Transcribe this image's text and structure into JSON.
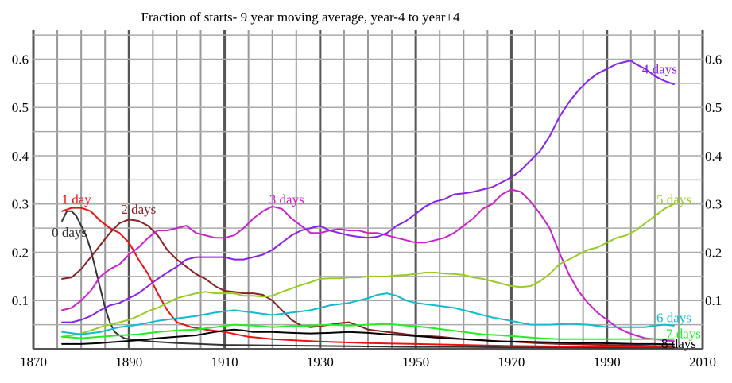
{
  "chart_data": {
    "type": "line",
    "title": "Fraction of starts- 9 year moving average, year-4 to year+4",
    "xlabel": "",
    "ylabel": "",
    "xlim": [
      1870,
      2010
    ],
    "ylim": [
      0,
      0.66
    ],
    "x_ticks": [
      "1870",
      "1890",
      "1910",
      "1930",
      "1950",
      "1970",
      "1990",
      "2010"
    ],
    "y_ticks": [
      "0.1",
      "0.2",
      "0.3",
      "0.4",
      "0.5",
      "0.6"
    ],
    "grid": true,
    "legend": "none (series labeled inline)",
    "series": [
      {
        "name": "0 days",
        "color": "#333333",
        "x": [
          1876,
          1877,
          1878,
          1879,
          1880,
          1881,
          1882,
          1883,
          1884,
          1885,
          1886,
          1887,
          1888,
          1889,
          1890,
          1892,
          1895,
          1900,
          1905,
          1910,
          1920,
          1930,
          1940,
          1950,
          1960,
          1970,
          1980,
          1990,
          2000,
          2004
        ],
        "y": [
          0.265,
          0.285,
          0.285,
          0.275,
          0.255,
          0.235,
          0.205,
          0.165,
          0.125,
          0.085,
          0.055,
          0.035,
          0.028,
          0.022,
          0.02,
          0.018,
          0.015,
          0.012,
          0.01,
          0.008,
          0.007,
          0.006,
          0.005,
          0.004,
          0.004,
          0.003,
          0.003,
          0.002,
          0.002,
          0.002
        ]
      },
      {
        "name": "1 day",
        "color": "#ee1111",
        "x": [
          1876,
          1878,
          1880,
          1882,
          1884,
          1886,
          1888,
          1890,
          1892,
          1894,
          1896,
          1898,
          1900,
          1903,
          1906,
          1910,
          1915,
          1920,
          1930,
          1940,
          1950,
          1960,
          1970,
          1980,
          1990,
          2000,
          2004
        ],
        "y": [
          0.285,
          0.292,
          0.292,
          0.285,
          0.265,
          0.25,
          0.24,
          0.22,
          0.185,
          0.155,
          0.115,
          0.08,
          0.055,
          0.045,
          0.04,
          0.035,
          0.025,
          0.02,
          0.015,
          0.012,
          0.01,
          0.008,
          0.006,
          0.005,
          0.005,
          0.004,
          0.004
        ]
      },
      {
        "name": "2 days",
        "color": "#882222",
        "x": [
          1876,
          1878,
          1880,
          1882,
          1884,
          1886,
          1888,
          1890,
          1892,
          1894,
          1896,
          1898,
          1900,
          1902,
          1904,
          1906,
          1908,
          1910,
          1912,
          1914,
          1916,
          1918,
          1920,
          1922,
          1924,
          1926,
          1928,
          1930,
          1932,
          1934,
          1936,
          1938,
          1940,
          1944,
          1950,
          1955,
          1960,
          1965,
          1970,
          1975,
          1980,
          1990,
          2000,
          2004
        ],
        "y": [
          0.145,
          0.148,
          0.165,
          0.19,
          0.215,
          0.24,
          0.26,
          0.268,
          0.265,
          0.255,
          0.235,
          0.205,
          0.185,
          0.17,
          0.155,
          0.145,
          0.13,
          0.12,
          0.118,
          0.115,
          0.115,
          0.112,
          0.1,
          0.08,
          0.06,
          0.048,
          0.045,
          0.047,
          0.05,
          0.053,
          0.055,
          0.048,
          0.04,
          0.035,
          0.028,
          0.025,
          0.02,
          0.017,
          0.015,
          0.012,
          0.01,
          0.008,
          0.006,
          0.005
        ]
      },
      {
        "name": "3 days",
        "color": "#cc22cc",
        "x": [
          1876,
          1878,
          1880,
          1882,
          1884,
          1886,
          1888,
          1890,
          1892,
          1894,
          1896,
          1898,
          1900,
          1902,
          1904,
          1906,
          1908,
          1910,
          1912,
          1914,
          1916,
          1918,
          1920,
          1922,
          1924,
          1926,
          1928,
          1930,
          1932,
          1934,
          1936,
          1938,
          1940,
          1942,
          1944,
          1946,
          1948,
          1950,
          1952,
          1954,
          1956,
          1958,
          1960,
          1962,
          1964,
          1966,
          1968,
          1970,
          1972,
          1974,
          1976,
          1978,
          1980,
          1982,
          1984,
          1986,
          1988,
          1990,
          1992,
          1994,
          1996,
          1998,
          2000,
          2002,
          2004
        ],
        "y": [
          0.08,
          0.085,
          0.1,
          0.12,
          0.15,
          0.165,
          0.175,
          0.195,
          0.21,
          0.23,
          0.245,
          0.245,
          0.25,
          0.255,
          0.24,
          0.235,
          0.23,
          0.23,
          0.235,
          0.25,
          0.27,
          0.285,
          0.295,
          0.29,
          0.27,
          0.255,
          0.24,
          0.24,
          0.245,
          0.248,
          0.245,
          0.245,
          0.24,
          0.24,
          0.235,
          0.23,
          0.225,
          0.22,
          0.22,
          0.225,
          0.23,
          0.24,
          0.255,
          0.27,
          0.29,
          0.3,
          0.32,
          0.33,
          0.325,
          0.305,
          0.28,
          0.25,
          0.2,
          0.155,
          0.12,
          0.095,
          0.075,
          0.06,
          0.045,
          0.035,
          0.028,
          0.022,
          0.02,
          0.018,
          0.016
        ]
      },
      {
        "name": "4 days",
        "color": "#8822ee",
        "x": [
          1876,
          1878,
          1880,
          1882,
          1884,
          1886,
          1888,
          1890,
          1892,
          1894,
          1896,
          1898,
          1900,
          1902,
          1904,
          1906,
          1908,
          1910,
          1912,
          1914,
          1916,
          1918,
          1920,
          1922,
          1924,
          1926,
          1928,
          1930,
          1932,
          1934,
          1936,
          1938,
          1940,
          1942,
          1944,
          1946,
          1948,
          1950,
          1952,
          1954,
          1956,
          1958,
          1960,
          1962,
          1964,
          1966,
          1968,
          1970,
          1972,
          1974,
          1976,
          1978,
          1980,
          1982,
          1984,
          1986,
          1988,
          1990,
          1992,
          1994,
          1995,
          1996,
          1998,
          2000,
          2002,
          2004
        ],
        "y": [
          0.055,
          0.055,
          0.06,
          0.068,
          0.08,
          0.09,
          0.095,
          0.105,
          0.115,
          0.13,
          0.145,
          0.158,
          0.17,
          0.185,
          0.19,
          0.19,
          0.19,
          0.19,
          0.185,
          0.185,
          0.19,
          0.195,
          0.205,
          0.22,
          0.235,
          0.245,
          0.25,
          0.255,
          0.245,
          0.24,
          0.235,
          0.232,
          0.23,
          0.232,
          0.24,
          0.255,
          0.265,
          0.28,
          0.295,
          0.305,
          0.31,
          0.32,
          0.322,
          0.325,
          0.33,
          0.335,
          0.345,
          0.355,
          0.37,
          0.39,
          0.41,
          0.44,
          0.48,
          0.51,
          0.535,
          0.555,
          0.57,
          0.58,
          0.59,
          0.595,
          0.597,
          0.59,
          0.58,
          0.565,
          0.555,
          0.548
        ]
      },
      {
        "name": "5 days",
        "color": "#99cc22",
        "x": [
          1876,
          1878,
          1880,
          1882,
          1884,
          1886,
          1888,
          1890,
          1892,
          1894,
          1896,
          1898,
          1900,
          1902,
          1904,
          1906,
          1908,
          1910,
          1912,
          1914,
          1916,
          1918,
          1920,
          1922,
          1924,
          1926,
          1928,
          1930,
          1932,
          1934,
          1936,
          1938,
          1940,
          1942,
          1944,
          1946,
          1948,
          1950,
          1952,
          1954,
          1956,
          1958,
          1960,
          1962,
          1964,
          1966,
          1968,
          1970,
          1972,
          1974,
          1976,
          1978,
          1980,
          1982,
          1984,
          1986,
          1988,
          1990,
          1992,
          1994,
          1996,
          1998,
          2000,
          2002,
          2004
        ],
        "y": [
          0.025,
          0.028,
          0.032,
          0.038,
          0.045,
          0.05,
          0.055,
          0.06,
          0.068,
          0.078,
          0.085,
          0.095,
          0.105,
          0.11,
          0.115,
          0.118,
          0.115,
          0.115,
          0.115,
          0.11,
          0.11,
          0.108,
          0.11,
          0.118,
          0.125,
          0.132,
          0.138,
          0.145,
          0.146,
          0.146,
          0.148,
          0.148,
          0.15,
          0.15,
          0.15,
          0.152,
          0.153,
          0.155,
          0.158,
          0.158,
          0.156,
          0.155,
          0.153,
          0.148,
          0.145,
          0.14,
          0.135,
          0.13,
          0.128,
          0.13,
          0.14,
          0.155,
          0.175,
          0.185,
          0.195,
          0.205,
          0.21,
          0.22,
          0.23,
          0.235,
          0.245,
          0.26,
          0.275,
          0.29,
          0.3
        ]
      },
      {
        "name": "6 days",
        "color": "#11bbcc",
        "x": [
          1876,
          1880,
          1884,
          1888,
          1892,
          1896,
          1900,
          1904,
          1908,
          1912,
          1916,
          1920,
          1924,
          1928,
          1932,
          1936,
          1940,
          1942,
          1944,
          1946,
          1948,
          1950,
          1954,
          1958,
          1962,
          1966,
          1970,
          1974,
          1978,
          1982,
          1986,
          1990,
          1994,
          1998,
          2000,
          2002,
          2004
        ],
        "y": [
          0.035,
          0.03,
          0.035,
          0.045,
          0.05,
          0.058,
          0.063,
          0.068,
          0.075,
          0.08,
          0.075,
          0.07,
          0.075,
          0.08,
          0.09,
          0.095,
          0.105,
          0.112,
          0.115,
          0.11,
          0.1,
          0.095,
          0.09,
          0.085,
          0.075,
          0.065,
          0.058,
          0.05,
          0.05,
          0.052,
          0.05,
          0.045,
          0.045,
          0.045,
          0.048,
          0.05,
          0.048
        ]
      },
      {
        "name": "7 days",
        "color": "#22ee22",
        "x": [
          1876,
          1880,
          1884,
          1888,
          1892,
          1896,
          1900,
          1904,
          1908,
          1912,
          1916,
          1920,
          1924,
          1928,
          1932,
          1936,
          1940,
          1944,
          1948,
          1952,
          1956,
          1960,
          1964,
          1968,
          1972,
          1976,
          1980,
          1984,
          1988,
          1992,
          1996,
          2000,
          2004
        ],
        "y": [
          0.025,
          0.022,
          0.025,
          0.028,
          0.03,
          0.035,
          0.038,
          0.04,
          0.045,
          0.05,
          0.048,
          0.045,
          0.047,
          0.048,
          0.05,
          0.048,
          0.05,
          0.052,
          0.048,
          0.045,
          0.04,
          0.035,
          0.03,
          0.028,
          0.025,
          0.022,
          0.02,
          0.02,
          0.02,
          0.02,
          0.02,
          0.02,
          0.02
        ]
      },
      {
        "name": "8 days",
        "color": "#000000",
        "x": [
          1876,
          1880,
          1884,
          1888,
          1892,
          1896,
          1900,
          1904,
          1908,
          1910,
          1912,
          1914,
          1916,
          1920,
          1924,
          1928,
          1932,
          1936,
          1940,
          1944,
          1948,
          1952,
          1956,
          1960,
          1964,
          1968,
          1972,
          1976,
          1980,
          1984,
          1988,
          1992,
          1996,
          2000,
          2004
        ],
        "y": [
          0.01,
          0.01,
          0.012,
          0.015,
          0.018,
          0.022,
          0.025,
          0.028,
          0.035,
          0.038,
          0.04,
          0.038,
          0.035,
          0.035,
          0.033,
          0.032,
          0.033,
          0.035,
          0.033,
          0.03,
          0.028,
          0.025,
          0.022,
          0.02,
          0.018,
          0.015,
          0.015,
          0.014,
          0.013,
          0.012,
          0.012,
          0.011,
          0.01,
          0.01,
          0.009
        ]
      }
    ],
    "series_labels": [
      {
        "text": "0 days",
        "color": "#333333",
        "x": 1877.5,
        "y": 0.232
      },
      {
        "text": "1 day",
        "color": "#ee1111",
        "x": 1879,
        "y": 0.3
      },
      {
        "text": "2 days",
        "color": "#882222",
        "x": 1892,
        "y": 0.28
      },
      {
        "text": "3 days",
        "color": "#cc22cc",
        "x": 1923,
        "y": 0.3
      },
      {
        "text": "4 days",
        "color": "#8822ee",
        "x": 2001,
        "y": 0.57
      },
      {
        "text": "5 days",
        "color": "#99cc22",
        "x": 2004,
        "y": 0.3
      },
      {
        "text": "6 days",
        "color": "#11bbcc",
        "x": 2004,
        "y": 0.055
      },
      {
        "text": "7 days",
        "color": "#22ee22",
        "x": 2006,
        "y": 0.022
      },
      {
        "text": "8 days",
        "color": "#000000",
        "x": 2005,
        "y": 0.002
      }
    ]
  }
}
